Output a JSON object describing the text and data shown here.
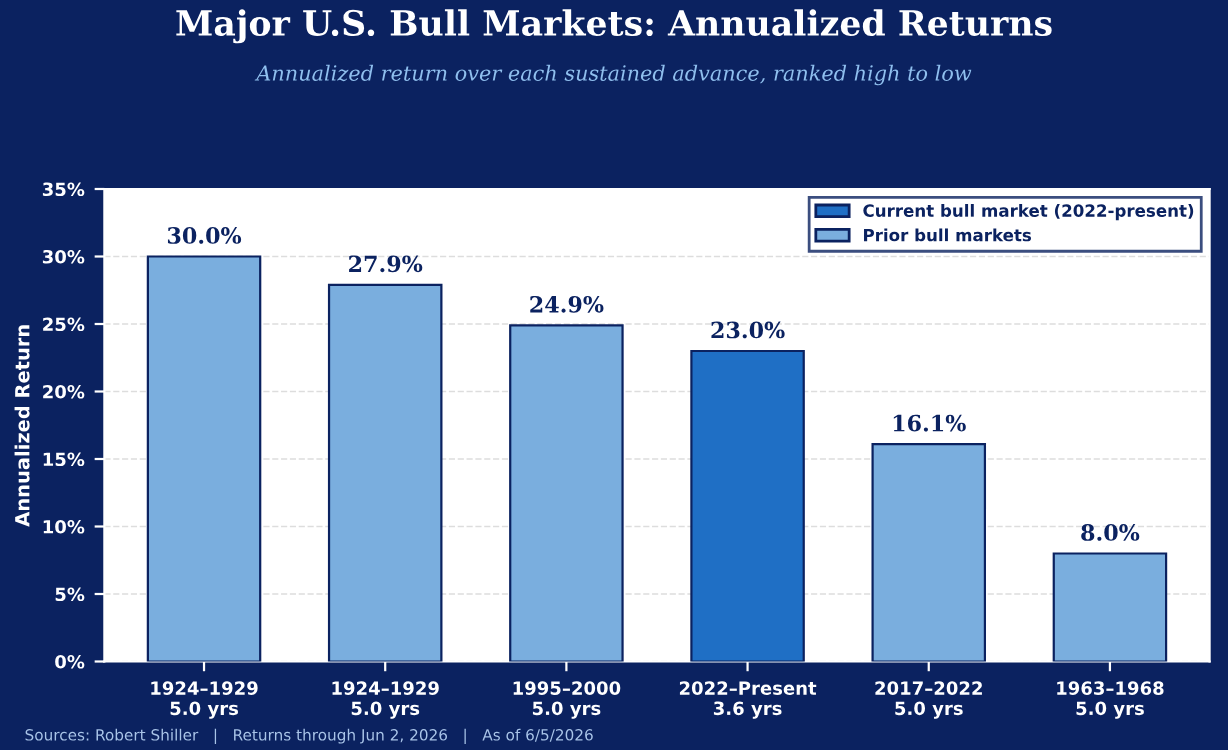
{
  "chart_data": {
    "type": "bar",
    "title": "Major U.S. Bull Markets: Annualized Returns",
    "subtitle": "Annualized return over each sustained advance, ranked high to low",
    "ylabel": "Annualized Return",
    "categories": [
      "1924–1929\n5.0 yrs",
      "1924–1929\n5.0 yrs",
      "1995–2000\n5.0 yrs",
      "2022–Present\n3.6 yrs",
      "2017–2022\n5.0 yrs",
      "1963–1968\n5.0 yrs"
    ],
    "series": [
      {
        "name": "Current bull market (2022-present)",
        "color": "#1f6fc5",
        "values": [
          null,
          null,
          null,
          23.0,
          null,
          null
        ],
        "value_labels": [
          null,
          null,
          null,
          "23.0%",
          null,
          null
        ]
      },
      {
        "name": "Prior bull markets",
        "color": "#7aaede",
        "values": [
          30.0,
          27.9,
          24.9,
          null,
          16.1,
          8.0
        ],
        "value_labels": [
          "30.0%",
          "27.9%",
          "24.9%",
          null,
          "16.1%",
          "8.0%"
        ]
      }
    ],
    "ylim": [
      0,
      35
    ],
    "yticks": [
      {
        "value": 0,
        "label": "0%"
      },
      {
        "value": 5,
        "label": "5%"
      },
      {
        "value": 10,
        "label": "10%"
      },
      {
        "value": 15,
        "label": "15%"
      },
      {
        "value": 20,
        "label": "20%"
      },
      {
        "value": 25,
        "label": "25%"
      },
      {
        "value": 30,
        "label": "30%"
      },
      {
        "value": 35,
        "label": "35%"
      }
    ],
    "grid": "y",
    "legend": "top right",
    "annotations": [
      "Sources: Robert Shiller   |   Returns through Jun 2, 2026   |   As of 6/5/2026"
    ]
  }
}
